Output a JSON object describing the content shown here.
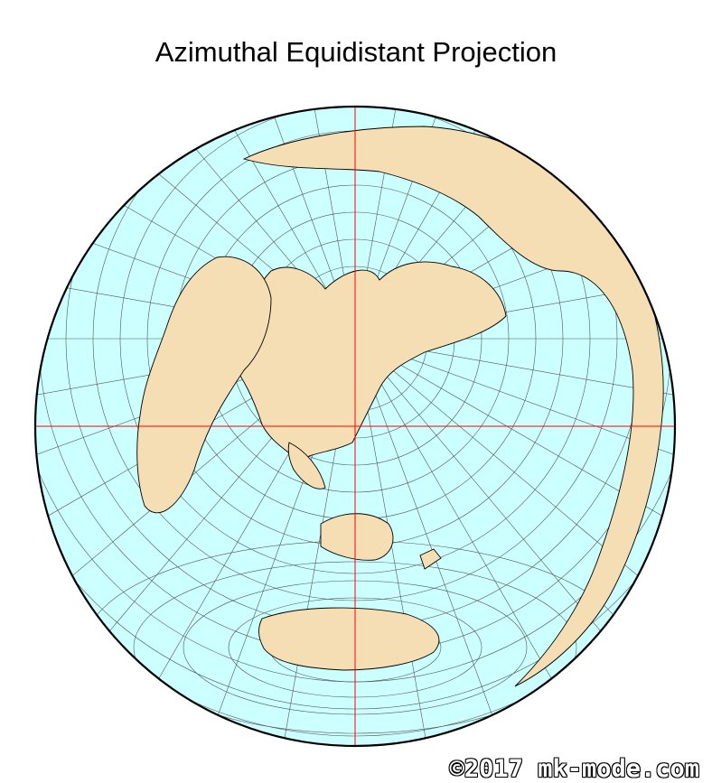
{
  "title": "Azimuthal Equidistant Projection",
  "credit": "©2017 mk-mode.com",
  "colors": {
    "ocean": "#ccffff",
    "land": "#f5deb3",
    "graticule": "#555555",
    "center_lines": "#ff0000",
    "coast": "#000000"
  }
}
